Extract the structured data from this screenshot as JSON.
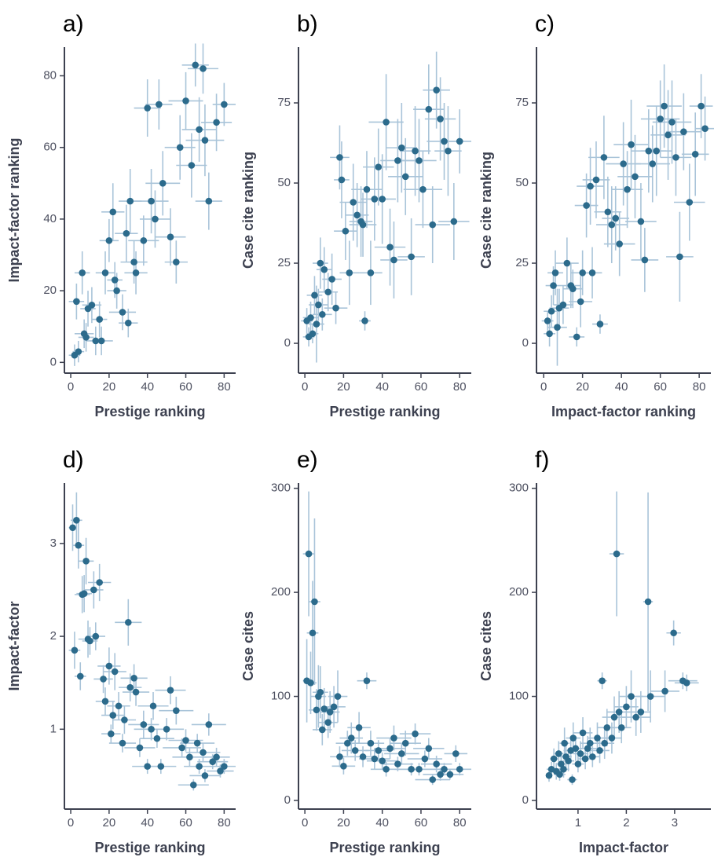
{
  "chart_data": [
    {
      "type": "scatter",
      "title": "a)",
      "x_label": "Prestige ranking",
      "y_label": "Impact-factor ranking",
      "color": "#2c6b8c",
      "error_color": "#a9c4d9",
      "xlim": [
        -3.3,
        86
      ],
      "ylim": [
        -3,
        88
      ],
      "xticks": [
        0,
        20,
        40,
        60,
        80
      ],
      "yticks": [
        0,
        20,
        40,
        60,
        80
      ],
      "x": [
        2,
        3,
        4,
        6,
        7,
        8,
        9,
        11,
        13,
        15,
        16,
        18,
        20,
        22,
        23,
        24,
        27,
        29,
        30,
        31,
        33,
        34,
        38,
        40,
        42,
        44,
        46,
        48,
        52,
        55,
        57,
        60,
        63,
        65,
        67,
        69,
        70,
        72,
        76,
        80
      ],
      "y": [
        2,
        17,
        3,
        25,
        8,
        7,
        15,
        16,
        6,
        12,
        6,
        25,
        34,
        42,
        23,
        20,
        14,
        36,
        11,
        45,
        28,
        25,
        34,
        71,
        45,
        40,
        72,
        50,
        35,
        28,
        60,
        73,
        55,
        83,
        65,
        82,
        62,
        45,
        67,
        72
      ],
      "xerr": [
        3,
        4,
        3,
        4,
        5,
        4,
        4,
        5,
        5,
        4,
        6,
        5,
        5,
        6,
        4,
        5,
        7,
        6,
        5,
        6,
        7,
        6,
        8,
        7,
        9,
        8,
        7,
        9,
        8,
        6,
        8,
        9,
        8,
        7,
        9,
        8,
        10,
        7,
        8,
        6
      ],
      "yerr": [
        3,
        5,
        3,
        6,
        4,
        4,
        5,
        5,
        4,
        5,
        4,
        6,
        6,
        8,
        5,
        5,
        5,
        8,
        4,
        9,
        6,
        6,
        7,
        8,
        9,
        8,
        7,
        9,
        8,
        6,
        9,
        8,
        9,
        6,
        9,
        7,
        10,
        8,
        8,
        6
      ]
    },
    {
      "type": "scatter",
      "title": "b)",
      "x_label": "Prestige ranking",
      "y_label": "Case cite ranking",
      "color": "#2c6b8c",
      "error_color": "#a9c4d9",
      "xlim": [
        -3.3,
        86
      ],
      "ylim": [
        -9.3,
        92.4
      ],
      "xticks": [
        0,
        20,
        40,
        60,
        80
      ],
      "yticks": [
        0,
        25,
        50,
        75
      ],
      "x": [
        1,
        2,
        3,
        4,
        5,
        6,
        7,
        8,
        9,
        10,
        12,
        14,
        16,
        18,
        19,
        21,
        23,
        25,
        27,
        29,
        30,
        31,
        32,
        34,
        36,
        38,
        40,
        42,
        44,
        46,
        48,
        50,
        52,
        55,
        57,
        59,
        61,
        64,
        66,
        68,
        70,
        72,
        74,
        77,
        80
      ],
      "y": [
        7,
        2,
        8,
        3,
        15,
        6,
        12,
        25,
        9,
        23,
        16,
        20,
        11,
        58,
        51,
        35,
        22,
        44,
        40,
        38,
        37,
        7,
        48,
        22,
        45,
        55,
        45,
        69,
        30,
        26,
        57,
        61,
        52,
        27,
        60,
        57,
        48,
        73,
        37,
        79,
        70,
        63,
        60,
        38,
        63
      ],
      "xerr": [
        3,
        3,
        4,
        3,
        4,
        4,
        5,
        4,
        5,
        4,
        5,
        5,
        6,
        5,
        4,
        6,
        5,
        7,
        6,
        6,
        7,
        3,
        8,
        6,
        7,
        8,
        7,
        9,
        8,
        7,
        9,
        8,
        9,
        7,
        8,
        9,
        10,
        8,
        9,
        7,
        8,
        9,
        7,
        8,
        6
      ],
      "yerr": [
        4,
        3,
        5,
        3,
        6,
        12,
        5,
        8,
        5,
        7,
        6,
        8,
        5,
        10,
        12,
        9,
        10,
        12,
        10,
        11,
        10,
        3,
        12,
        10,
        13,
        12,
        14,
        15,
        12,
        12,
        13,
        14,
        12,
        12,
        14,
        13,
        12,
        14,
        12,
        12,
        13,
        12,
        14,
        12,
        10
      ]
    },
    {
      "type": "scatter",
      "title": "c)",
      "x_label": "Impact-factor ranking",
      "y_label": "Case cite ranking",
      "color": "#2c6b8c",
      "error_color": "#a9c4d9",
      "xlim": [
        -3.7,
        86
      ],
      "ylim": [
        -9.3,
        92.4
      ],
      "xticks": [
        0,
        20,
        40,
        60,
        80
      ],
      "yticks": [
        0,
        25,
        50,
        75
      ],
      "x": [
        2,
        3,
        4,
        5,
        6,
        7,
        8,
        10,
        12,
        14,
        15,
        17,
        19,
        20,
        22,
        24,
        25,
        27,
        29,
        31,
        33,
        35,
        37,
        39,
        41,
        43,
        45,
        47,
        50,
        52,
        54,
        56,
        58,
        60,
        62,
        64,
        66,
        68,
        70,
        72,
        75,
        78,
        81,
        83
      ],
      "y": [
        7,
        3,
        10,
        18,
        22,
        5,
        11,
        12,
        25,
        18,
        17,
        2,
        13,
        22,
        43,
        49,
        22,
        51,
        6,
        58,
        41,
        37,
        39,
        31,
        56,
        48,
        62,
        52,
        38,
        26,
        60,
        56,
        60,
        70,
        74,
        65,
        69,
        58,
        27,
        66,
        44,
        59,
        74,
        67
      ],
      "xerr": [
        3,
        3,
        4,
        4,
        4,
        5,
        5,
        5,
        6,
        5,
        5,
        4,
        6,
        6,
        6,
        7,
        5,
        7,
        4,
        8,
        7,
        8,
        7,
        8,
        9,
        8,
        9,
        9,
        8,
        7,
        9,
        9,
        8,
        10,
        9,
        9,
        10,
        8,
        7,
        9,
        8,
        7,
        6,
        5
      ],
      "yerr": [
        3,
        4,
        5,
        6,
        7,
        12,
        6,
        6,
        8,
        7,
        6,
        3,
        8,
        7,
        10,
        12,
        8,
        12,
        3,
        13,
        11,
        12,
        10,
        10,
        13,
        12,
        14,
        13,
        12,
        10,
        13,
        12,
        14,
        12,
        13,
        14,
        13,
        12,
        14,
        12,
        12,
        13,
        10,
        10
      ]
    },
    {
      "type": "scatter",
      "title": "d)",
      "x_label": "Prestige ranking",
      "y_label": "Impact-factor",
      "color": "#2c6b8c",
      "error_color": "#a9c4d9",
      "xlim": [
        -3.3,
        86
      ],
      "ylim": [
        0.14,
        3.65
      ],
      "xticks": [
        0,
        20,
        40,
        60,
        80
      ],
      "yticks": [
        1,
        2,
        3
      ],
      "x": [
        1,
        2,
        3,
        4,
        5,
        6,
        7,
        8,
        9,
        10,
        12,
        13,
        15,
        17,
        18,
        20,
        21,
        22,
        23,
        25,
        27,
        28,
        30,
        31,
        33,
        34,
        36,
        38,
        40,
        42,
        43,
        45,
        47,
        50,
        52,
        55,
        58,
        60,
        62,
        64,
        66,
        67,
        69,
        70,
        72,
        74,
        76,
        78,
        80
      ],
      "y": [
        3.17,
        1.85,
        3.25,
        2.98,
        1.57,
        2.45,
        2.46,
        2.81,
        1.97,
        1.95,
        2.5,
        2.0,
        2.58,
        1.54,
        1.3,
        1.68,
        0.95,
        1.15,
        1.62,
        1.25,
        0.85,
        1.1,
        2.15,
        1.45,
        1.55,
        1.4,
        0.8,
        1.05,
        0.6,
        1.0,
        1.25,
        0.9,
        0.6,
        1.0,
        1.42,
        1.2,
        0.8,
        0.88,
        0.7,
        0.4,
        0.85,
        0.6,
        0.75,
        0.5,
        1.05,
        0.65,
        0.7,
        0.55,
        0.6
      ],
      "xerr": [
        2,
        3,
        3,
        3,
        3,
        4,
        4,
        4,
        5,
        4,
        5,
        5,
        6,
        5,
        5,
        6,
        5,
        6,
        6,
        6,
        7,
        6,
        7,
        6,
        7,
        7,
        8,
        8,
        8,
        9,
        8,
        9,
        8,
        9,
        8,
        9,
        10,
        9,
        9,
        8,
        9,
        8,
        9,
        8,
        9,
        8,
        7,
        7,
        6
      ],
      "yerr": [
        0.25,
        0.2,
        0.3,
        0.25,
        0.15,
        0.2,
        0.2,
        0.25,
        0.2,
        0.15,
        0.2,
        0.15,
        0.2,
        0.15,
        0.15,
        0.2,
        0.1,
        0.15,
        0.2,
        0.15,
        0.1,
        0.15,
        0.25,
        0.15,
        0.15,
        0.15,
        0.1,
        0.15,
        0.08,
        0.12,
        0.15,
        0.1,
        0.08,
        0.12,
        0.15,
        0.15,
        0.1,
        0.12,
        0.1,
        0.06,
        0.1,
        0.08,
        0.1,
        0.07,
        0.12,
        0.08,
        0.1,
        0.07,
        0.08
      ]
    },
    {
      "type": "scatter",
      "title": "e)",
      "x_label": "Prestige ranking",
      "y_label": "Case cites",
      "color": "#2c6b8c",
      "error_color": "#a9c4d9",
      "xlim": [
        -3.3,
        86
      ],
      "ylim": [
        -8.3,
        305
      ],
      "xticks": [
        0,
        20,
        40,
        60,
        80
      ],
      "yticks": [
        0,
        100,
        200,
        300
      ],
      "x": [
        1,
        2,
        3,
        4,
        5,
        6,
        7,
        8,
        9,
        10,
        12,
        13,
        15,
        17,
        18,
        20,
        22,
        24,
        26,
        28,
        30,
        32,
        34,
        36,
        38,
        40,
        42,
        44,
        46,
        48,
        50,
        52,
        55,
        57,
        59,
        62,
        64,
        66,
        68,
        70,
        72,
        75,
        78,
        80
      ],
      "y": [
        115,
        237,
        113,
        161,
        191,
        87,
        100,
        104,
        68,
        88,
        75,
        85,
        90,
        100,
        42,
        33,
        55,
        60,
        48,
        70,
        42,
        115,
        55,
        40,
        48,
        38,
        30,
        50,
        60,
        35,
        45,
        55,
        30,
        64,
        30,
        40,
        50,
        20,
        35,
        25,
        30,
        25,
        45,
        30
      ],
      "xerr": [
        2,
        3,
        3,
        3,
        3,
        4,
        4,
        4,
        5,
        4,
        5,
        5,
        6,
        5,
        5,
        6,
        6,
        6,
        7,
        6,
        7,
        5,
        7,
        8,
        7,
        8,
        8,
        8,
        9,
        8,
        9,
        8,
        9,
        8,
        9,
        9,
        8,
        9,
        8,
        9,
        8,
        7,
        6,
        6
      ],
      "yerr": [
        40,
        60,
        30,
        50,
        80,
        20,
        30,
        25,
        15,
        20,
        15,
        20,
        20,
        25,
        10,
        8,
        12,
        15,
        10,
        15,
        10,
        8,
        12,
        10,
        10,
        8,
        7,
        10,
        12,
        7,
        10,
        12,
        6,
        10,
        6,
        8,
        10,
        5,
        8,
        6,
        6,
        5,
        8,
        6
      ]
    },
    {
      "type": "scatter",
      "title": "f)",
      "x_label": "Impact-factor",
      "y_label": "Case cites",
      "color": "#2c6b8c",
      "error_color": "#a9c4d9",
      "xlim": [
        0.14,
        3.75
      ],
      "ylim": [
        -8.3,
        305
      ],
      "xticks": [
        1,
        2,
        3
      ],
      "yticks": [
        0,
        100,
        200,
        300
      ],
      "x": [
        0.4,
        0.45,
        0.5,
        0.55,
        0.6,
        0.62,
        0.65,
        0.7,
        0.72,
        0.75,
        0.8,
        0.85,
        0.88,
        0.9,
        0.95,
        1.0,
        1.05,
        1.1,
        1.15,
        1.2,
        1.25,
        1.3,
        1.4,
        1.45,
        1.5,
        1.55,
        1.6,
        1.7,
        1.75,
        1.8,
        1.85,
        1.9,
        2.0,
        2.1,
        2.2,
        2.3,
        2.45,
        2.5,
        2.8,
        2.98,
        3.17,
        3.25
      ],
      "y": [
        24,
        30,
        40,
        28,
        45,
        25,
        35,
        30,
        55,
        42,
        38,
        48,
        20,
        60,
        50,
        35,
        45,
        65,
        40,
        50,
        55,
        42,
        60,
        48,
        115,
        55,
        70,
        60,
        80,
        237,
        85,
        70,
        90,
        100,
        80,
        85,
        191,
        100,
        105,
        161,
        115,
        113
      ],
      "xerr": [
        0.07,
        0.1,
        0.08,
        0.1,
        0.1,
        0.12,
        0.1,
        0.12,
        0.1,
        0.12,
        0.12,
        0.15,
        0.1,
        0.15,
        0.15,
        0.12,
        0.15,
        0.2,
        0.15,
        0.2,
        0.2,
        0.15,
        0.2,
        0.2,
        0.1,
        0.2,
        0.2,
        0.2,
        0.25,
        0.15,
        0.25,
        0.2,
        0.25,
        0.25,
        0.3,
        0.2,
        0.1,
        0.3,
        0.3,
        0.15,
        0.3,
        0.25
      ],
      "yerr": [
        6,
        7,
        10,
        8,
        12,
        6,
        10,
        8,
        15,
        12,
        10,
        12,
        5,
        15,
        12,
        8,
        12,
        15,
        10,
        12,
        15,
        10,
        15,
        12,
        8,
        15,
        18,
        15,
        20,
        60,
        20,
        15,
        20,
        25,
        18,
        20,
        105,
        25,
        20,
        12,
        8,
        8
      ]
    }
  ]
}
